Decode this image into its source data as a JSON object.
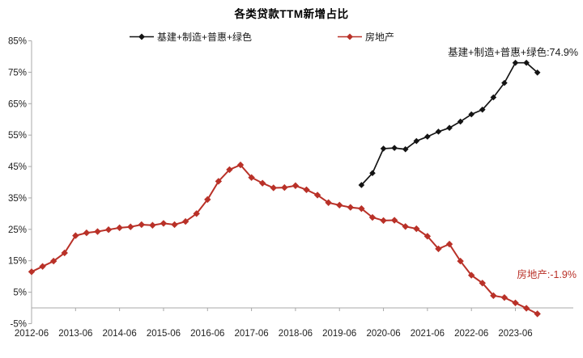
{
  "title": "各类贷款TTM新增占比",
  "annotations": {
    "infra": {
      "text": "基建+制造+普惠+绿色:74.9%",
      "color": "#1a1a1a"
    },
    "realestate": {
      "text": "房地产:-1.9%",
      "color": "#b93128"
    }
  },
  "chart_data": {
    "type": "line",
    "title": "各类贷款TTM新增占比",
    "grid": false,
    "legend_position": "top",
    "ylim": [
      -5,
      85
    ],
    "y_ticks": [
      85,
      75,
      65,
      55,
      45,
      35,
      25,
      15,
      5,
      -5
    ],
    "y_tick_suffix": "%",
    "x_tick_labels": [
      "2012-06",
      "2013-06",
      "2014-06",
      "2015-06",
      "2016-06",
      "2017-06",
      "2018-06",
      "2019-06",
      "2020-06",
      "2021-06",
      "2022-06",
      "2023-06"
    ],
    "axis_color": "#a8a8a8",
    "tick_label_color": "#1f1f1f",
    "series": [
      {
        "name": "基建+制造+普惠+绿色",
        "color": "#141414",
        "marker": "diamond",
        "x": [
          "2019-12",
          "2020-03",
          "2020-06",
          "2020-09",
          "2020-12",
          "2021-03",
          "2021-06",
          "2021-09",
          "2021-12",
          "2022-03",
          "2022-06",
          "2022-09",
          "2022-12",
          "2023-03",
          "2023-06",
          "2023-09",
          "2023-12"
        ],
        "values": [
          39.1,
          42.9,
          50.7,
          50.9,
          50.5,
          53.1,
          54.5,
          56.1,
          57.3,
          59.3,
          61.6,
          63.1,
          67.0,
          71.6,
          78.0,
          78.0,
          74.9
        ]
      },
      {
        "name": "房地产",
        "color": "#b93128",
        "marker": "diamond",
        "x": [
          "2012-06",
          "2012-09",
          "2012-12",
          "2013-03",
          "2013-06",
          "2013-09",
          "2013-12",
          "2014-03",
          "2014-06",
          "2014-09",
          "2014-12",
          "2015-03",
          "2015-06",
          "2015-09",
          "2015-12",
          "2016-03",
          "2016-06",
          "2016-09",
          "2016-12",
          "2017-03",
          "2017-06",
          "2017-09",
          "2017-12",
          "2018-03",
          "2018-06",
          "2018-09",
          "2018-12",
          "2019-03",
          "2019-06",
          "2019-09",
          "2019-12",
          "2020-03",
          "2020-06",
          "2020-09",
          "2020-12",
          "2021-03",
          "2021-06",
          "2021-09",
          "2021-12",
          "2022-03",
          "2022-06",
          "2022-09",
          "2022-12",
          "2023-03",
          "2023-06",
          "2023-09",
          "2023-12"
        ],
        "values": [
          11.5,
          13.2,
          14.9,
          17.5,
          23.0,
          23.9,
          24.3,
          24.9,
          25.5,
          25.8,
          26.5,
          26.3,
          26.9,
          26.5,
          27.5,
          30.0,
          34.5,
          40.3,
          44.0,
          45.5,
          41.5,
          39.7,
          38.2,
          38.3,
          38.9,
          37.6,
          35.9,
          33.5,
          32.7,
          32.0,
          31.6,
          28.8,
          27.8,
          27.9,
          25.9,
          25.2,
          22.8,
          18.8,
          20.3,
          14.9,
          10.4,
          7.9,
          3.9,
          3.3,
          1.6,
          -0.1,
          -1.9
        ]
      }
    ]
  }
}
